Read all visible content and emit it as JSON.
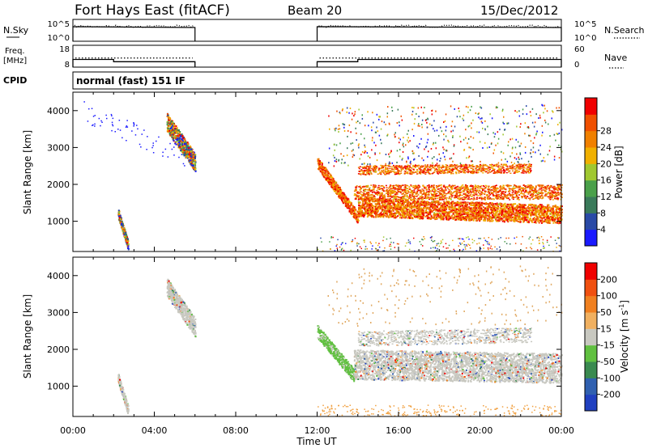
{
  "header": {
    "station": "Fort Hays East (fitACF)",
    "beam": "Beam 20",
    "date": "15/Dec/2012"
  },
  "chart_data": [
    {
      "type": "line",
      "panel": "noise",
      "left_label": "N.Sky",
      "right_label": "N.Search",
      "left_ticks": [
        "10^5",
        "10^0"
      ],
      "right_ticks": [
        "10^5",
        "10^0"
      ],
      "x_range_hours": [
        0,
        24
      ],
      "segments_hours": [
        [
          0,
          6
        ],
        [
          12,
          24
        ]
      ]
    },
    {
      "type": "line",
      "panel": "frequency",
      "left_label_lines": [
        "Freq.",
        "[MHz]"
      ],
      "right_label": "Nave",
      "left_ticks": [
        "18",
        "8"
      ],
      "right_ticks": [
        "60",
        "0"
      ],
      "freq_mhz_steps": [
        {
          "x": [
            0,
            2
          ],
          "y": 11.5
        },
        {
          "x": [
            2,
            6
          ],
          "y": 10.5
        },
        {
          "x": [
            12,
            14
          ],
          "y": 10.5
        },
        {
          "x": [
            14,
            24
          ],
          "y": 11.5
        }
      ],
      "nave_level": 25
    },
    {
      "type": "heatmap",
      "panel": "cpid",
      "label": "CPID",
      "text": "normal (fast) 151 IF"
    },
    {
      "type": "heatmap",
      "panel": "power",
      "ylabel": "Slant Range [km]",
      "ylim": [
        180,
        4500
      ],
      "yticks": [
        1000,
        2000,
        3000,
        4000
      ],
      "xlim": [
        0,
        24
      ],
      "colorbar": {
        "label": "Power [dB]",
        "ticks": [
          "4",
          "8",
          "12",
          "16",
          "20",
          "24",
          "28"
        ],
        "colors": [
          "#1a1aff",
          "#2a4aa6",
          "#3a7a5a",
          "#4aa04a",
          "#a0c830",
          "#f0b000",
          "#f08000",
          "#f05000",
          "#f00000"
        ]
      }
    },
    {
      "type": "heatmap",
      "panel": "velocity",
      "ylabel": "Slant Range [km]",
      "ylim": [
        180,
        4500
      ],
      "yticks": [
        1000,
        2000,
        3000,
        4000
      ],
      "xlim": [
        0,
        24
      ],
      "xlabel": "Time UT",
      "xticks": [
        "00:00",
        "04:00",
        "08:00",
        "12:00",
        "16:00",
        "20:00",
        "00:00"
      ],
      "colorbar": {
        "label_main": "Velocity [m s",
        "label_sup": "-1",
        "label_end": "]",
        "ticks": [
          "200",
          "100",
          "50",
          "15",
          "-15",
          "-50",
          "-100",
          "-200"
        ],
        "colors": [
          "#2040c0",
          "#3060b0",
          "#3a8a50",
          "#60c040",
          "#c8c8c0",
          "#f0b060",
          "#f08020",
          "#f05010",
          "#f00000"
        ]
      }
    }
  ]
}
